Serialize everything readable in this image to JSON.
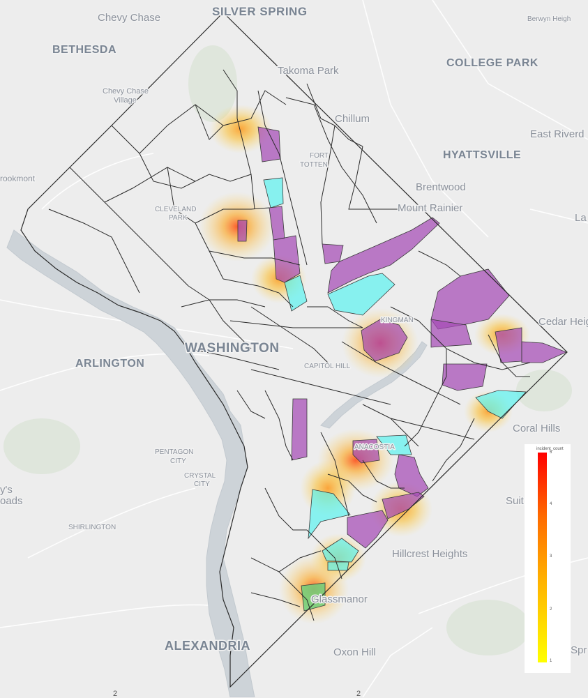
{
  "labels": {
    "chevy_chase": "Chevy Chase",
    "silver_spring": "SILVER SPRING",
    "berwyn": "Berwyn Heigh",
    "bethesda": "BETHESDA",
    "college_park": "COLLEGE PARK",
    "takoma_park": "Takoma Park",
    "chevy_chase_village_1": "Chevy Chase",
    "chevy_chase_village_2": "Village",
    "chillum": "Chillum",
    "east_riverdale": "East Riverd",
    "hyattsville": "HYATTSVILLE",
    "fort_totten_1": "FORT",
    "fort_totten_2": "TOTTEN",
    "brookmont": "rookmont",
    "brentwood": "Brentwood",
    "mount_rainier": "Mount Rainier",
    "cleveland_park_1": "CLEVELAND",
    "cleveland_park_2": "PARK",
    "landover": "La",
    "cedar_heights": "Cedar Heig",
    "kingman": "KINGMAN",
    "washington": "WASHINGTON",
    "arlington": "ARLINGTON",
    "capitol_hill": "CAPITOL HILL",
    "coral_hills": "Coral Hills",
    "pentagon_city_1": "PENTAGON",
    "pentagon_city_2": "CITY",
    "crystal_city_1": "CRYSTAL",
    "crystal_city_2": "CITY",
    "baileys_1": "y's",
    "baileys_2": "oads",
    "suitland": "Suit",
    "shirlington": "SHIRLINGTON",
    "anacostia": "ANACOSTIA",
    "hillcrest_heights": "Hillcrest Heights",
    "glassmanor": "Glassmanor",
    "alexandria": "ALEXANDRIA",
    "oxon_hill": "Oxon Hill",
    "spr": "Spr"
  },
  "legend": {
    "title": "incident_count",
    "ticks": [
      "5",
      "4",
      "3",
      "2",
      "1"
    ],
    "min": 1,
    "max": 5,
    "colors": [
      "#ffff00",
      "#ffb000",
      "#ff6a00",
      "#ff0000"
    ]
  },
  "bottom_ticks": [
    "2",
    "2"
  ],
  "colors": {
    "land": "#ededed",
    "water": "#cdd3d8",
    "park": "#dfe6dc",
    "purple_fill": "#a54bb5",
    "cyan_fill": "#5ff3f0",
    "green_fill": "#6ed07c",
    "boundary": "#2a2a2a"
  }
}
